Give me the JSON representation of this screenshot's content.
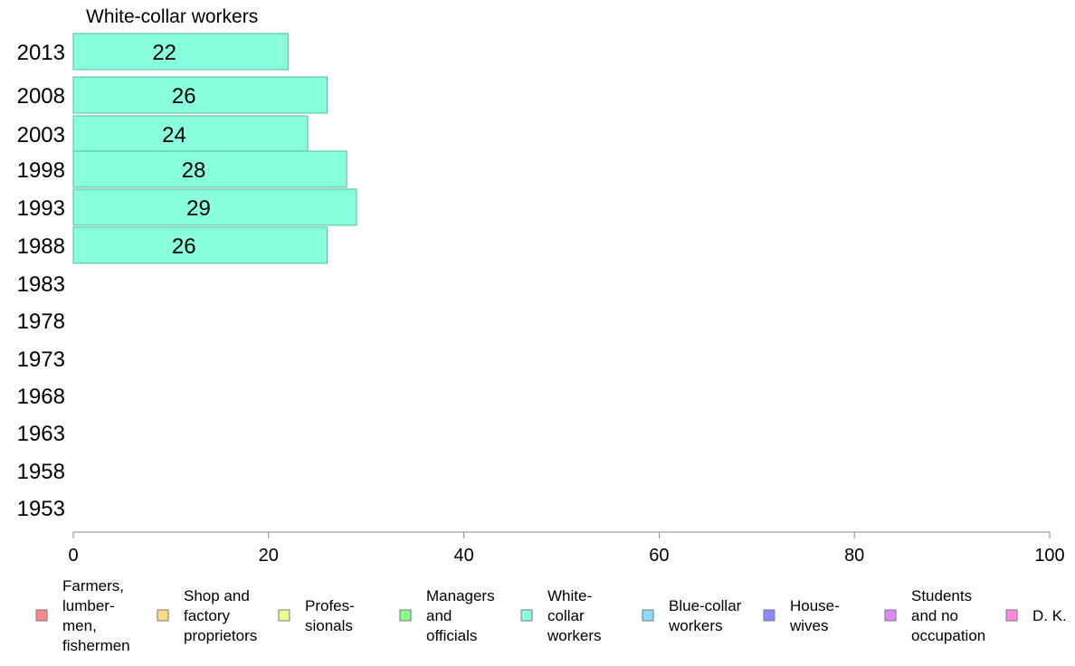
{
  "chart_data": {
    "type": "bar",
    "orientation": "horizontal",
    "title": "White-collar workers",
    "categories": [
      "2013",
      "2008",
      "2003",
      "1998",
      "1993",
      "1988",
      "1983",
      "1978",
      "1973",
      "1968",
      "1963",
      "1958",
      "1953"
    ],
    "values": [
      22,
      26,
      24,
      28,
      29,
      26,
      null,
      null,
      null,
      null,
      null,
      null,
      null
    ],
    "data_labels": [
      "22",
      "26",
      "24",
      "28",
      "29",
      "26",
      "",
      "",
      "",
      "",
      "",
      "",
      ""
    ],
    "xlim": [
      0,
      100
    ],
    "xticks": [
      "0",
      "20",
      "40",
      "60",
      "80",
      "100"
    ],
    "grid": false,
    "bar_color": "#88ffdd",
    "bar_edge_color": "#55bb99",
    "axis_color": "#888888",
    "legend_placement": "bottom",
    "legend": [
      {
        "lines": [
          "Farmers,",
          "lumber-",
          "men,",
          "fishermen"
        ],
        "color": "#ff8888"
      },
      {
        "lines": [
          "Shop and",
          "factory",
          "proprietors"
        ],
        "color": "#ffdd88"
      },
      {
        "lines": [
          "Profes-",
          "sionals"
        ],
        "color": "#eeff88"
      },
      {
        "lines": [
          "Managers",
          "and",
          "officials"
        ],
        "color": "#88ff88"
      },
      {
        "lines": [
          "White-",
          "collar",
          "workers"
        ],
        "color": "#88ffdd"
      },
      {
        "lines": [
          "Blue-collar",
          "workers"
        ],
        "color": "#88ddff"
      },
      {
        "lines": [
          "House-",
          "wives"
        ],
        "color": "#8888ff"
      },
      {
        "lines": [
          "Students",
          "and no",
          "occupation"
        ],
        "color": "#dd88ff"
      },
      {
        "lines": [
          "D. K."
        ],
        "color": "#ff88dd"
      }
    ]
  }
}
